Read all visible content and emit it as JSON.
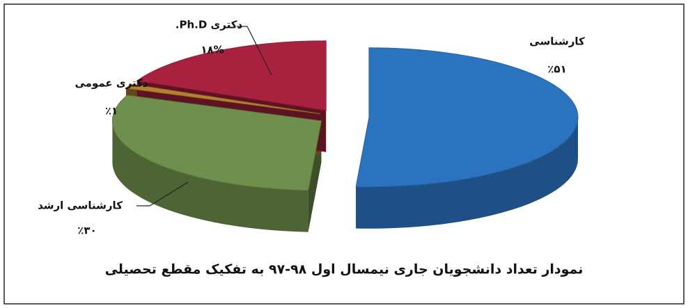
{
  "chart_data": {
    "type": "pie",
    "title": "نمودار تعداد دانشجویان جاری نیمسال اول ۹۸-۹۷ به تفکیک مقطع تحصیلی",
    "categories": [
      "کارشناسی",
      "کارشناسی ارشد",
      "دکتری عمومی",
      "دکتری Ph.D."
    ],
    "values": [
      51,
      30,
      1,
      18
    ],
    "value_labels": [
      "٪۵۱",
      "٪۳۰",
      "٪۱",
      "۱۸%"
    ],
    "colors": [
      "#2b72bf",
      "#6f8f4c",
      "#b8802e",
      "#a82240"
    ]
  }
}
